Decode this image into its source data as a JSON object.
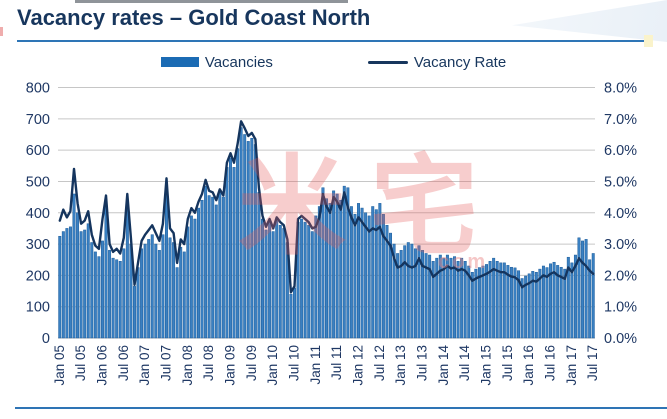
{
  "page": {
    "title": "Vacancy rates – Gold Coast North"
  },
  "legend": [
    {
      "label": "Vacancies",
      "type": "bar",
      "color": "#1b6bb4"
    },
    {
      "label": "Vacancy Rate",
      "type": "line",
      "color": "#17365d"
    }
  ],
  "watermark": {
    "text": "米宅",
    "suffix": "com"
  },
  "colors": {
    "title": "#17365d",
    "underline": "#2e75b6",
    "bar_fill": "#3a80c2",
    "bar_edge": "#1d5d9b",
    "line": "#15355e",
    "gridline": "#c6c6c6",
    "axis_text": "#1f3864"
  },
  "chart_data": {
    "type": "bar",
    "title": "Vacancy rates – Gold Coast North",
    "xlabel": "",
    "ylabel_left": "Vacancies",
    "ylabel_right": "Vacancy Rate",
    "grid": true,
    "legend_position": "top",
    "x_start": "Jan 2005",
    "x_end": "Jul 2017",
    "x_frequency": "monthly",
    "x_tick_labels": [
      "Jan 05",
      "Jul 05",
      "Jan 06",
      "Jul 06",
      "Jan 07",
      "Jul 07",
      "Jan 08",
      "Jul 08",
      "Jan 09",
      "Jul 09",
      "Jan 10",
      "Jul 10",
      "Jan 11",
      "Jul 11",
      "Jan 12",
      "Jul 12",
      "Jan 13",
      "Jul 13",
      "Jan 14",
      "Jul 14",
      "Jan 15",
      "Jul 15",
      "Jan 16",
      "Jul 16",
      "Jan 17",
      "Jul 17"
    ],
    "x_tick_step_months": 6,
    "left_axis": {
      "min": 0,
      "max": 800,
      "step": 100,
      "ticks": [
        "800",
        "700",
        "600",
        "500",
        "400",
        "300",
        "200",
        "100",
        "0"
      ]
    },
    "right_axis": {
      "min": 0,
      "max": 8,
      "step": 1,
      "ticks": [
        "8.0%",
        "7.0%",
        "6.0%",
        "5.0%",
        "4.0%",
        "3.0%",
        "2.0%",
        "1.0%",
        "0.0%"
      ]
    },
    "series": [
      {
        "name": "Vacancies",
        "type": "bar",
        "axis": "left",
        "color": "#3a80c2",
        "values": [
          325,
          340,
          350,
          355,
          460,
          400,
          340,
          345,
          365,
          305,
          275,
          260,
          310,
          420,
          280,
          255,
          250,
          245,
          285,
          430,
          300,
          165,
          225,
          285,
          300,
          315,
          330,
          300,
          280,
          330,
          480,
          320,
          305,
          225,
          290,
          275,
          355,
          390,
          380,
          415,
          440,
          485,
          455,
          450,
          425,
          465,
          450,
          545,
          575,
          545,
          605,
          672,
          650,
          628,
          638,
          618,
          465,
          380,
          345,
          370,
          340,
          375,
          360,
          350,
          305,
          140,
          160,
          370,
          380,
          370,
          360,
          340,
          390,
          420,
          480,
          445,
          430,
          470,
          460,
          440,
          485,
          480,
          420,
          395,
          430,
          415,
          400,
          390,
          420,
          410,
          430,
          395,
          360,
          335,
          300,
          270,
          280,
          295,
          305,
          300,
          285,
          295,
          280,
          270,
          265,
          245,
          255,
          265,
          255,
          265,
          255,
          260,
          245,
          255,
          245,
          230,
          210,
          220,
          225,
          230,
          235,
          245,
          255,
          245,
          240,
          240,
          232,
          226,
          224,
          215,
          190,
          198,
          205,
          213,
          210,
          220,
          230,
          225,
          237,
          242,
          232,
          226,
          220,
          258,
          240,
          265,
          320,
          310,
          315,
          250,
          270
        ]
      },
      {
        "name": "Vacancy Rate",
        "type": "line",
        "axis": "right",
        "unit": "%",
        "color": "#15355e",
        "values": [
          3.75,
          4.1,
          3.85,
          4.05,
          5.4,
          4.3,
          3.65,
          3.75,
          4.05,
          3.3,
          2.95,
          2.85,
          3.8,
          4.55,
          3.0,
          2.75,
          2.85,
          2.7,
          3.2,
          4.6,
          3.2,
          1.7,
          2.4,
          3.1,
          3.3,
          3.45,
          3.6,
          3.35,
          3.1,
          3.65,
          5.1,
          3.5,
          3.35,
          2.4,
          3.15,
          3.0,
          3.8,
          4.15,
          4.0,
          4.35,
          4.6,
          5.05,
          4.7,
          4.65,
          4.4,
          4.75,
          4.55,
          5.6,
          5.9,
          5.6,
          6.2,
          6.92,
          6.7,
          6.45,
          6.55,
          6.35,
          4.8,
          3.9,
          3.55,
          3.8,
          3.5,
          3.85,
          3.7,
          3.6,
          3.15,
          1.46,
          1.65,
          3.8,
          3.9,
          3.8,
          3.7,
          3.5,
          3.55,
          3.85,
          4.6,
          4.2,
          4.0,
          4.5,
          4.35,
          4.1,
          4.65,
          4.18,
          3.85,
          3.6,
          3.85,
          3.7,
          3.55,
          3.4,
          3.5,
          3.45,
          3.55,
          3.25,
          3.1,
          2.95,
          2.55,
          2.25,
          2.3,
          2.42,
          2.3,
          2.25,
          2.3,
          2.55,
          2.3,
          2.25,
          2.2,
          1.95,
          2.05,
          2.15,
          2.2,
          2.3,
          2.22,
          2.25,
          2.15,
          2.2,
          2.15,
          2.0,
          1.83,
          1.9,
          1.95,
          2.0,
          2.05,
          2.12,
          2.2,
          2.15,
          2.1,
          2.1,
          2.02,
          1.96,
          1.94,
          1.85,
          1.62,
          1.7,
          1.75,
          1.83,
          1.8,
          1.9,
          2.0,
          1.95,
          2.05,
          2.1,
          2.0,
          1.95,
          1.89,
          2.25,
          2.1,
          2.3,
          2.55,
          2.4,
          2.3,
          2.15,
          2.05
        ]
      }
    ]
  }
}
